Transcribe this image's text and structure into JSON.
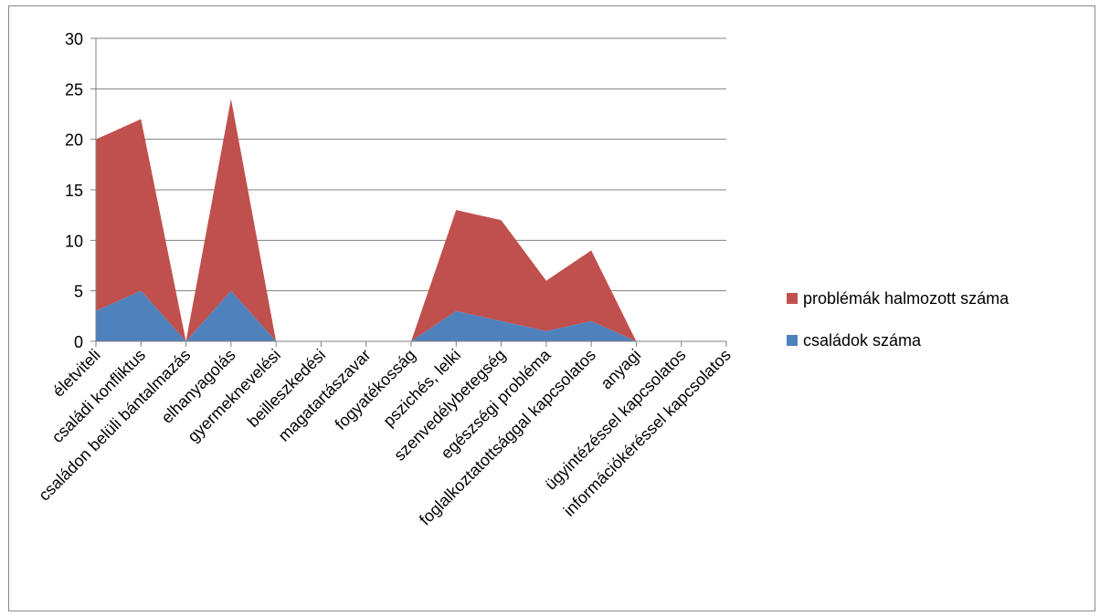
{
  "chart_data": {
    "type": "area",
    "stacked": true,
    "categories": [
      "életviteli",
      "családi konfliktus",
      "családon belüli bántalmazás",
      "elhanyagolás",
      "gyermeknevelési",
      "beilleszkedési",
      "magatartászavar",
      "fogyatékosság",
      "pszichés, lelki",
      "szenvedélybetegség",
      "egészségi probléma",
      "foglalkoztatottsággal kapcsolatos",
      "anyagi",
      "ügyintézéssel kapcsolatos",
      "információkéréssel kapcsolatos"
    ],
    "series": [
      {
        "name": "családok száma",
        "color": "#4f81bd",
        "values": [
          3,
          5,
          0,
          5,
          0,
          null,
          null,
          0,
          3,
          2,
          1,
          2,
          0,
          null,
          null
        ]
      },
      {
        "name": "problémák halmozott száma",
        "color": "#c0504d",
        "values": [
          17,
          17,
          0,
          19,
          0,
          null,
          null,
          0,
          10,
          10,
          5,
          7,
          0,
          null,
          null
        ]
      }
    ],
    "ylim": [
      0,
      30
    ],
    "yticks": [
      "0",
      "5",
      "10",
      "15",
      "20",
      "25",
      "30"
    ],
    "grid": true,
    "legend_position": "right",
    "legend": [
      {
        "label": "problémák halmozott száma",
        "color": "#c0504d"
      },
      {
        "label": "családok száma",
        "color": "#4f81bd"
      }
    ]
  }
}
